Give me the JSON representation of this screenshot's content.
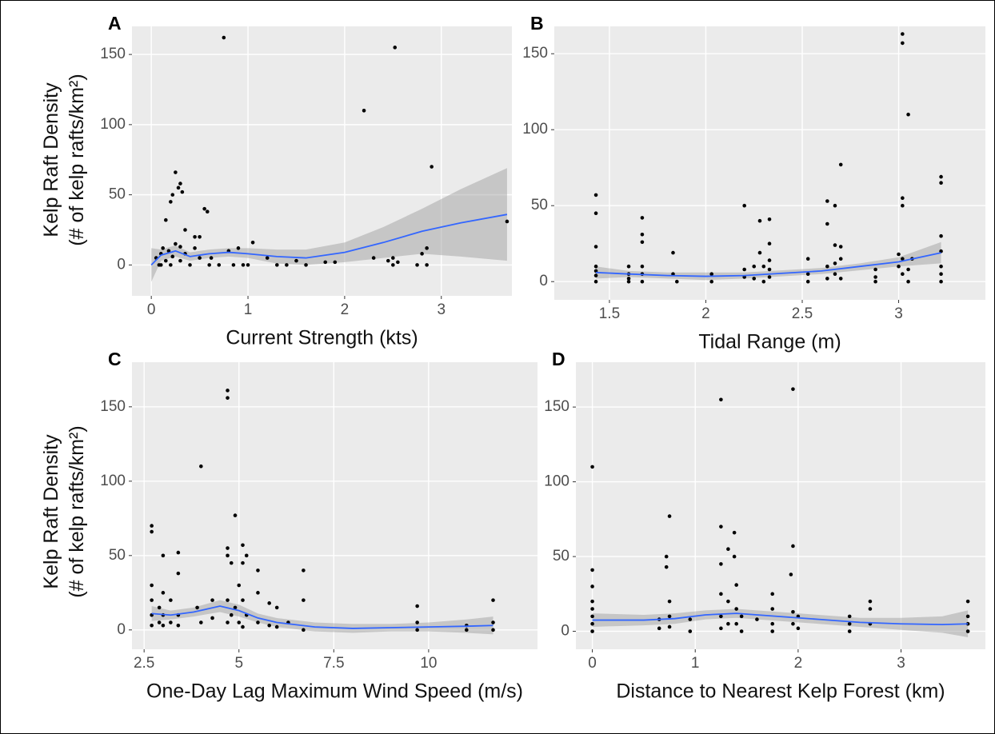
{
  "chart_data": [
    {
      "type": "scatter",
      "panel": "A",
      "xlabel": "Current Strength (kts)",
      "ylabel": [
        "Kelp Raft Density",
        "(# of kelp rafts/km²)"
      ],
      "xlim": [
        -0.2,
        3.73
      ],
      "ylim": [
        -22,
        170
      ],
      "xticks": [
        0,
        1,
        2,
        3
      ],
      "yticks": [
        0,
        50,
        100,
        150
      ],
      "grid": true,
      "points": {
        "color": "#000000",
        "x": [
          0.75,
          2.52,
          2.2,
          2.9,
          3.68,
          0.25,
          0.3,
          0.28,
          0.22,
          0.32,
          0.2,
          0.15,
          0.55,
          0.58,
          0.35,
          0.5,
          0.45,
          1.05,
          2.85,
          2.8,
          2.85,
          2.5,
          2.55,
          2.45,
          2.3,
          2.5,
          2.75,
          1.2,
          1.5,
          1.8,
          1.4,
          1.0,
          0.9,
          0.8,
          0.1,
          0.05,
          0.12,
          0.18,
          0.3,
          0.4,
          0.2,
          0.1,
          0.6,
          0.7,
          0.85,
          0.95,
          1.3,
          1.6,
          1.9,
          0.25,
          0.35,
          0.45,
          0.08,
          0.15,
          0.5,
          0.62,
          0.3,
          0.22
        ],
        "values": [
          162,
          155,
          110,
          70,
          31,
          66,
          58,
          55,
          50,
          52,
          45,
          32,
          40,
          38,
          25,
          20,
          20,
          16,
          12,
          8,
          0,
          5,
          2,
          3,
          5,
          0,
          0,
          5,
          3,
          2,
          0,
          0,
          12,
          10,
          8,
          5,
          12,
          10,
          3,
          0,
          0,
          0,
          0,
          0,
          0,
          0,
          0,
          0,
          2,
          15,
          8,
          12,
          0,
          3,
          5,
          5,
          13,
          6
        ]
      },
      "fit": {
        "color": "#3366ff",
        "band_color": "#999999",
        "x": [
          0,
          0.1,
          0.25,
          0.4,
          0.6,
          0.8,
          1.0,
          1.3,
          1.6,
          2.0,
          2.4,
          2.8,
          3.2,
          3.68
        ],
        "values": [
          0,
          7,
          10,
          6,
          8,
          9,
          8,
          6,
          5,
          9,
          16,
          24,
          30,
          36
        ],
        "lower": [
          -12,
          3,
          6,
          3,
          5,
          6,
          5,
          1,
          0,
          2,
          5,
          8,
          6,
          3
        ],
        "upper": [
          12,
          11,
          14,
          9,
          11,
          12,
          12,
          11,
          11,
          16,
          27,
          40,
          54,
          69
        ]
      }
    },
    {
      "type": "scatter",
      "panel": "B",
      "xlabel": "Tidal Range (m)",
      "xlim": [
        1.214,
        3.45
      ],
      "ylim": [
        -12,
        168
      ],
      "xticks": [
        1.5,
        2,
        2.5,
        3
      ],
      "yticks": [
        0,
        50,
        100,
        150
      ],
      "grid": true,
      "points": {
        "color": "#000000",
        "x": [
          1.43,
          1.43,
          1.43,
          1.43,
          1.43,
          1.43,
          1.43,
          1.6,
          1.6,
          1.6,
          1.6,
          1.67,
          1.67,
          1.67,
          1.67,
          1.67,
          1.67,
          1.83,
          1.83,
          1.85,
          2.03,
          2.03,
          2.2,
          2.2,
          2.2,
          2.25,
          2.25,
          2.28,
          2.28,
          2.3,
          2.3,
          2.33,
          2.33,
          2.33,
          2.33,
          2.33,
          2.53,
          2.53,
          2.53,
          2.63,
          2.63,
          2.63,
          2.63,
          2.67,
          2.67,
          2.67,
          2.67,
          2.7,
          2.7,
          2.7,
          2.7,
          2.88,
          2.88,
          2.88,
          3.0,
          3.0,
          3.02,
          3.02,
          3.02,
          3.02,
          3.02,
          3.02,
          3.05,
          3.05,
          3.05,
          3.07,
          3.22,
          3.22,
          3.22,
          3.22,
          3.22,
          3.22,
          3.22
        ],
        "values": [
          57,
          45,
          23,
          10,
          7,
          4,
          0,
          10,
          5,
          2,
          0,
          42,
          31,
          26,
          10,
          5,
          0,
          19,
          5,
          0,
          5,
          0,
          50,
          8,
          3,
          10,
          2,
          40,
          19,
          10,
          0,
          41,
          25,
          14,
          8,
          3,
          15,
          5,
          0,
          53,
          38,
          10,
          2,
          50,
          24,
          12,
          5,
          77,
          23,
          15,
          2,
          8,
          3,
          0,
          18,
          10,
          163,
          157,
          55,
          50,
          15,
          5,
          110,
          8,
          0,
          15,
          69,
          65,
          30,
          20,
          10,
          5,
          0
        ]
      },
      "fit": {
        "color": "#3366ff",
        "band_color": "#999999",
        "x": [
          1.43,
          1.6,
          1.8,
          2.0,
          2.2,
          2.4,
          2.6,
          2.8,
          3.0,
          3.22
        ],
        "values": [
          6,
          5,
          4,
          3.5,
          4,
          5.5,
          7,
          10,
          13,
          19
        ],
        "lower": [
          2,
          3,
          2,
          1,
          2,
          3.5,
          5,
          7.5,
          10,
          12
        ],
        "upper": [
          10,
          7,
          6,
          6,
          6,
          7.5,
          9,
          12,
          16,
          26
        ]
      }
    },
    {
      "type": "scatter",
      "panel": "C",
      "xlabel": "One-Day Lag Maximum Wind Speed (m/s)",
      "ylabel": [
        "Kelp Raft Density",
        "(# of kelp rafts/km²)"
      ],
      "xlim": [
        2.18,
        12.87
      ],
      "ylim": [
        -13,
        180
      ],
      "xticks": [
        2.5,
        5,
        7.5,
        10
      ],
      "yticks": [
        0,
        50,
        100,
        150
      ],
      "grid": true,
      "points": {
        "color": "#000000",
        "x": [
          2.7,
          2.7,
          2.7,
          2.7,
          2.7,
          2.7,
          2.9,
          2.9,
          3.0,
          3.0,
          3.0,
          3.0,
          3.2,
          3.2,
          3.4,
          3.4,
          3.4,
          3.4,
          4.0,
          3.9,
          4.0,
          4.3,
          4.3,
          4.7,
          4.7,
          4.7,
          4.7,
          4.7,
          4.7,
          4.8,
          4.8,
          4.9,
          4.9,
          5.0,
          5.0,
          5.1,
          5.1,
          5.1,
          5.1,
          5.2,
          5.2,
          5.5,
          5.5,
          5.5,
          5.8,
          5.8,
          6.0,
          6.0,
          6.3,
          6.7,
          6.7,
          6.7,
          9.7,
          9.7,
          9.7,
          11.0,
          11.0,
          11.7,
          11.7,
          11.7
        ],
        "values": [
          70,
          66,
          30,
          20,
          10,
          3,
          15,
          5,
          50,
          25,
          10,
          3,
          20,
          5,
          52,
          38,
          10,
          3,
          110,
          15,
          5,
          20,
          8,
          161,
          156,
          55,
          50,
          20,
          5,
          45,
          10,
          77,
          15,
          30,
          5,
          57,
          45,
          20,
          2,
          50,
          10,
          40,
          25,
          5,
          18,
          3,
          15,
          2,
          5,
          40,
          20,
          0,
          16,
          5,
          0,
          3,
          0,
          20,
          5,
          0
        ]
      },
      "fit": {
        "color": "#3366ff",
        "band_color": "#999999",
        "x": [
          2.7,
          3.2,
          3.8,
          4.5,
          5.0,
          5.5,
          6.0,
          7.0,
          8.0,
          9.0,
          10,
          11,
          11.7
        ],
        "values": [
          11,
          10,
          12,
          16,
          13,
          8,
          5,
          2,
          1,
          1.5,
          2,
          2.5,
          3
        ],
        "lower": [
          6,
          7,
          9,
          12,
          9,
          5,
          2,
          -1,
          -2,
          -1,
          -1,
          -2,
          -3
        ],
        "upper": [
          16,
          13,
          15,
          20,
          17,
          11,
          8,
          5,
          4,
          4,
          5,
          7,
          9
        ]
      }
    },
    {
      "type": "scatter",
      "panel": "D",
      "xlabel": "Distance to Nearest Kelp Forest (km)",
      "xlim": [
        -0.16,
        3.82
      ],
      "ylim": [
        -12,
        180
      ],
      "xticks": [
        0,
        1,
        2,
        3
      ],
      "yticks": [
        0,
        50,
        100,
        150
      ],
      "grid": true,
      "points": {
        "color": "#000000",
        "x": [
          0,
          0,
          0,
          0,
          0,
          0,
          0,
          0,
          0.65,
          0.65,
          0.72,
          0.72,
          0.75,
          0.75,
          0.75,
          0.75,
          0.95,
          0.95,
          1.25,
          1.25,
          1.25,
          1.25,
          1.25,
          1.25,
          1.32,
          1.32,
          1.32,
          1.38,
          1.38,
          1.4,
          1.4,
          1.4,
          1.45,
          1.45,
          1.6,
          1.75,
          1.75,
          1.75,
          1.75,
          1.95,
          1.95,
          1.93,
          1.95,
          1.95,
          2.0,
          2.0,
          2.5,
          2.5,
          2.5,
          2.7,
          2.7,
          2.7,
          3.65,
          3.65,
          3.65,
          3.65
        ],
        "values": [
          110,
          41,
          30,
          20,
          15,
          10,
          5,
          0,
          8,
          2,
          50,
          43,
          77,
          20,
          10,
          3,
          8,
          0,
          155,
          70,
          45,
          25,
          10,
          2,
          55,
          20,
          5,
          66,
          50,
          31,
          15,
          5,
          10,
          0,
          8,
          25,
          15,
          5,
          0,
          162,
          57,
          38,
          13,
          5,
          10,
          2,
          10,
          5,
          0,
          20,
          15,
          5,
          20,
          10,
          5,
          0
        ]
      },
      "fit": {
        "color": "#3366ff",
        "band_color": "#999999",
        "x": [
          0,
          0.5,
          0.8,
          1.1,
          1.4,
          1.8,
          2.2,
          2.6,
          3.0,
          3.4,
          3.65
        ],
        "values": [
          7.5,
          7.5,
          8.5,
          11,
          12,
          10,
          8,
          6,
          5,
          4.5,
          5
        ],
        "lower": [
          3,
          4,
          5,
          8,
          9,
          7,
          5,
          3,
          1,
          -1,
          -4
        ],
        "upper": [
          12,
          11,
          12,
          14,
          15,
          13,
          11,
          9,
          9,
          10,
          14
        ]
      }
    }
  ]
}
